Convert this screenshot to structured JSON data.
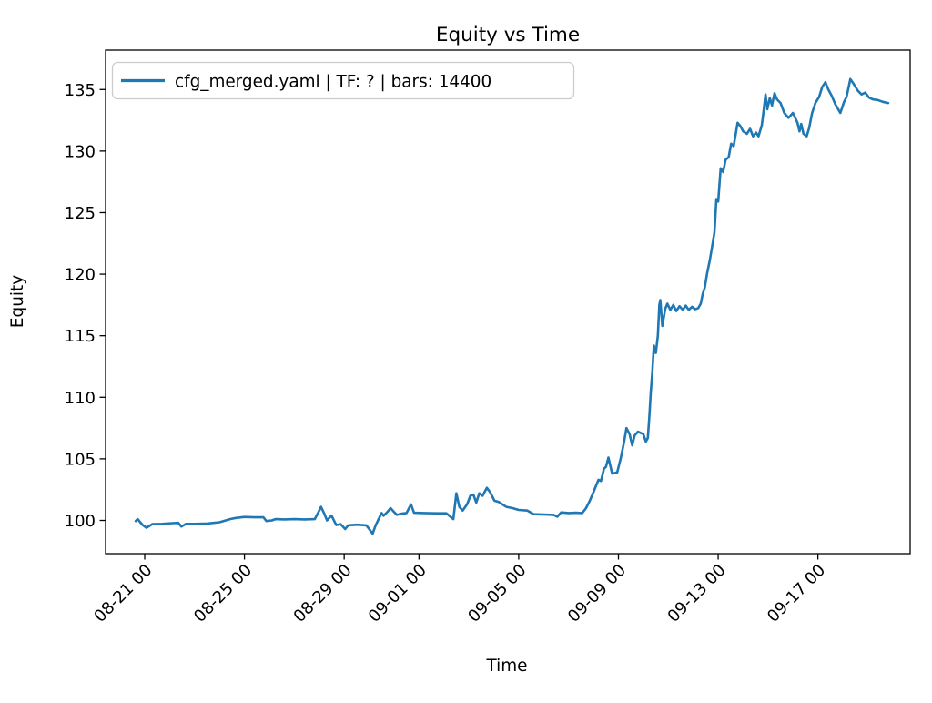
{
  "figure": {
    "title": "Equity vs Time",
    "xlabel": "Time",
    "ylabel": "Equity"
  },
  "chart_data": {
    "type": "line",
    "title": "Equity vs Time",
    "xlabel": "Time",
    "ylabel": "Equity",
    "grid": false,
    "legend_position": "upper left",
    "background_color": "#ffffff",
    "axis_color": "#000000",
    "legend_border_color": "#cccccc",
    "x_axis_unit": "days relative to first tick minus 1 (ticks are month-day hour labels)",
    "xlim_days": [
      -0.57,
      31.7
    ],
    "ylim": [
      97.3,
      138.2
    ],
    "y_ticks": [
      100,
      105,
      110,
      115,
      120,
      125,
      130,
      135
    ],
    "x_ticks": [
      {
        "label": "08-21 00",
        "day": 1
      },
      {
        "label": "08-25 00",
        "day": 5
      },
      {
        "label": "08-29 00",
        "day": 9
      },
      {
        "label": "09-01 00",
        "day": 12
      },
      {
        "label": "09-05 00",
        "day": 16
      },
      {
        "label": "09-09 00",
        "day": 20
      },
      {
        "label": "09-13 00",
        "day": 24
      },
      {
        "label": "09-17 00",
        "day": 28
      }
    ],
    "series": [
      {
        "name": "cfg_merged.yaml | TF: ? | bars: 14400",
        "color": "#1f77b4",
        "points_day_equity": [
          [
            0.64,
            99.95
          ],
          [
            0.72,
            100.1
          ],
          [
            0.9,
            99.65
          ],
          [
            1.07,
            99.4
          ],
          [
            1.3,
            99.7
          ],
          [
            1.7,
            99.72
          ],
          [
            2.1,
            99.78
          ],
          [
            2.35,
            99.8
          ],
          [
            2.47,
            99.5
          ],
          [
            2.65,
            99.72
          ],
          [
            3.0,
            99.72
          ],
          [
            3.5,
            99.75
          ],
          [
            4.0,
            99.85
          ],
          [
            4.42,
            100.1
          ],
          [
            4.66,
            100.2
          ],
          [
            5.0,
            100.28
          ],
          [
            5.4,
            100.25
          ],
          [
            5.76,
            100.25
          ],
          [
            5.88,
            99.95
          ],
          [
            6.1,
            100.0
          ],
          [
            6.24,
            100.1
          ],
          [
            6.6,
            100.08
          ],
          [
            7.0,
            100.1
          ],
          [
            7.4,
            100.08
          ],
          [
            7.82,
            100.1
          ],
          [
            7.95,
            100.6
          ],
          [
            8.07,
            101.1
          ],
          [
            8.19,
            100.6
          ],
          [
            8.31,
            100.0
          ],
          [
            8.49,
            100.4
          ],
          [
            8.68,
            99.62
          ],
          [
            8.86,
            99.7
          ],
          [
            9.04,
            99.3
          ],
          [
            9.16,
            99.6
          ],
          [
            9.5,
            99.65
          ],
          [
            9.89,
            99.6
          ],
          [
            10.01,
            99.28
          ],
          [
            10.14,
            98.92
          ],
          [
            10.26,
            99.6
          ],
          [
            10.38,
            100.1
          ],
          [
            10.5,
            100.6
          ],
          [
            10.58,
            100.38
          ],
          [
            10.74,
            100.7
          ],
          [
            10.86,
            101.0
          ],
          [
            10.99,
            100.7
          ],
          [
            11.11,
            100.45
          ],
          [
            11.3,
            100.55
          ],
          [
            11.5,
            100.6
          ],
          [
            11.68,
            101.3
          ],
          [
            11.8,
            100.62
          ],
          [
            12.2,
            100.6
          ],
          [
            12.7,
            100.58
          ],
          [
            13.1,
            100.58
          ],
          [
            13.38,
            100.1
          ],
          [
            13.5,
            102.2
          ],
          [
            13.62,
            101.1
          ],
          [
            13.75,
            100.8
          ],
          [
            13.93,
            101.3
          ],
          [
            14.06,
            102.0
          ],
          [
            14.18,
            102.1
          ],
          [
            14.3,
            101.45
          ],
          [
            14.42,
            102.2
          ],
          [
            14.55,
            102.0
          ],
          [
            14.72,
            102.65
          ],
          [
            14.85,
            102.3
          ],
          [
            15.03,
            101.6
          ],
          [
            15.2,
            101.5
          ],
          [
            15.35,
            101.3
          ],
          [
            15.5,
            101.1
          ],
          [
            15.75,
            101.0
          ],
          [
            16.0,
            100.85
          ],
          [
            16.35,
            100.8
          ],
          [
            16.6,
            100.5
          ],
          [
            17.0,
            100.48
          ],
          [
            17.4,
            100.45
          ],
          [
            17.55,
            100.3
          ],
          [
            17.7,
            100.65
          ],
          [
            18.0,
            100.6
          ],
          [
            18.3,
            100.62
          ],
          [
            18.55,
            100.6
          ],
          [
            18.7,
            101.0
          ],
          [
            18.85,
            101.6
          ],
          [
            19.0,
            102.3
          ],
          [
            19.1,
            102.8
          ],
          [
            19.2,
            103.3
          ],
          [
            19.3,
            103.2
          ],
          [
            19.42,
            104.2
          ],
          [
            19.5,
            104.35
          ],
          [
            19.6,
            105.1
          ],
          [
            19.75,
            103.8
          ],
          [
            19.95,
            103.9
          ],
          [
            20.1,
            105.1
          ],
          [
            20.22,
            106.3
          ],
          [
            20.32,
            107.5
          ],
          [
            20.45,
            107.0
          ],
          [
            20.55,
            106.1
          ],
          [
            20.65,
            106.9
          ],
          [
            20.78,
            107.2
          ],
          [
            20.9,
            107.1
          ],
          [
            21.0,
            107.0
          ],
          [
            21.1,
            106.4
          ],
          [
            21.18,
            106.7
          ],
          [
            21.24,
            108.5
          ],
          [
            21.3,
            110.5
          ],
          [
            21.36,
            112.0
          ],
          [
            21.42,
            114.2
          ],
          [
            21.5,
            113.6
          ],
          [
            21.58,
            115.0
          ],
          [
            21.64,
            117.5
          ],
          [
            21.68,
            117.9
          ],
          [
            21.76,
            115.8
          ],
          [
            21.88,
            117.2
          ],
          [
            21.96,
            117.6
          ],
          [
            22.08,
            117.1
          ],
          [
            22.2,
            117.5
          ],
          [
            22.32,
            117.0
          ],
          [
            22.45,
            117.4
          ],
          [
            22.58,
            117.1
          ],
          [
            22.7,
            117.45
          ],
          [
            22.82,
            117.1
          ],
          [
            22.95,
            117.35
          ],
          [
            23.08,
            117.15
          ],
          [
            23.2,
            117.25
          ],
          [
            23.3,
            117.6
          ],
          [
            23.38,
            118.4
          ],
          [
            23.46,
            118.9
          ],
          [
            23.56,
            120.1
          ],
          [
            23.66,
            121.1
          ],
          [
            23.78,
            122.5
          ],
          [
            23.85,
            123.4
          ],
          [
            23.93,
            126.1
          ],
          [
            24.0,
            125.9
          ],
          [
            24.1,
            128.6
          ],
          [
            24.2,
            128.3
          ],
          [
            24.3,
            129.3
          ],
          [
            24.42,
            129.5
          ],
          [
            24.52,
            130.6
          ],
          [
            24.62,
            130.4
          ],
          [
            24.78,
            132.3
          ],
          [
            24.9,
            132.0
          ],
          [
            25.0,
            131.6
          ],
          [
            25.15,
            131.4
          ],
          [
            25.28,
            131.8
          ],
          [
            25.4,
            131.2
          ],
          [
            25.52,
            131.5
          ],
          [
            25.62,
            131.2
          ],
          [
            25.75,
            132.1
          ],
          [
            25.82,
            133.2
          ],
          [
            25.9,
            134.6
          ],
          [
            25.97,
            133.4
          ],
          [
            26.07,
            134.3
          ],
          [
            26.16,
            133.7
          ],
          [
            26.26,
            134.7
          ],
          [
            26.36,
            134.2
          ],
          [
            26.5,
            133.9
          ],
          [
            26.65,
            133.1
          ],
          [
            26.82,
            132.7
          ],
          [
            27.0,
            133.1
          ],
          [
            27.18,
            132.3
          ],
          [
            27.26,
            131.6
          ],
          [
            27.33,
            132.2
          ],
          [
            27.42,
            131.4
          ],
          [
            27.55,
            131.2
          ],
          [
            27.65,
            131.9
          ],
          [
            27.77,
            133.1
          ],
          [
            27.9,
            133.9
          ],
          [
            28.05,
            134.4
          ],
          [
            28.17,
            135.2
          ],
          [
            28.3,
            135.6
          ],
          [
            28.42,
            135.0
          ],
          [
            28.55,
            134.5
          ],
          [
            28.7,
            133.8
          ],
          [
            28.9,
            133.1
          ],
          [
            29.05,
            134.0
          ],
          [
            29.15,
            134.4
          ],
          [
            29.3,
            135.85
          ],
          [
            29.45,
            135.4
          ],
          [
            29.6,
            134.9
          ],
          [
            29.75,
            134.6
          ],
          [
            29.9,
            134.75
          ],
          [
            30.05,
            134.35
          ],
          [
            30.2,
            134.2
          ],
          [
            30.4,
            134.15
          ],
          [
            30.6,
            134.0
          ],
          [
            30.82,
            133.9
          ]
        ]
      }
    ]
  }
}
